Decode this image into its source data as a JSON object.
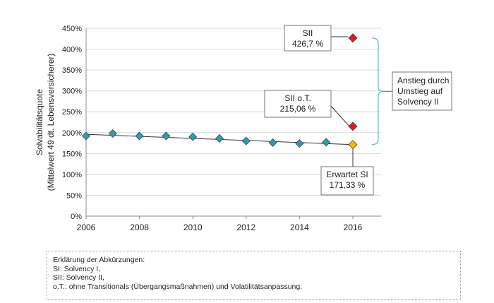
{
  "chart_data": {
    "type": "line",
    "title": "",
    "ylabel": [
      "Solvabilitätsquote",
      "(Mittelwert 49 dt. Lebensversicherer)"
    ],
    "xlabel": "",
    "xlim": [
      2006,
      2017
    ],
    "ylim": [
      0,
      450
    ],
    "x_ticks": [
      2006,
      2008,
      2010,
      2012,
      2014,
      2016
    ],
    "y_ticks": [
      0,
      50,
      100,
      150,
      200,
      250,
      300,
      350,
      400,
      450
    ],
    "y_tick_suffix": "%",
    "grid": "horizontal",
    "series": [
      {
        "color": "#2e9bb5",
        "marker": "diamond",
        "x": [
          2006,
          2007,
          2008,
          2009,
          2010,
          2011,
          2012,
          2013,
          2014,
          2015
        ],
        "y": [
          192,
          198,
          192,
          192,
          190,
          186,
          180,
          176,
          174,
          177
        ]
      }
    ],
    "trend_line": {
      "color": "#333333",
      "x": [
        2006,
        2016
      ],
      "y": [
        196,
        171.33
      ]
    },
    "annotated_points": [
      {
        "x": 2016,
        "y": 426.7,
        "label_lines": [
          "SII",
          "426,7 %"
        ],
        "color": "#e31a1c"
      },
      {
        "x": 2016,
        "y": 215.06,
        "label_lines": [
          "SII o.T.",
          "215,06 %"
        ],
        "color": "#e31a1c"
      },
      {
        "x": 2016,
        "y": 171.33,
        "label_lines": [
          "Erwartet SI",
          "171,33 %"
        ],
        "color": "#f5b800"
      }
    ],
    "bracket": {
      "from_y": 171.33,
      "to_y": 426.7,
      "color": "#5ab8d0",
      "label_lines": [
        "Anstieg durch",
        "Umstieg auf",
        "Solvency II"
      ]
    }
  },
  "note": {
    "lines": [
      "Erklärung der Abkürzungen:",
      "SI: Solvency I,",
      "SII: Solvency II,",
      "o.T.: ohne Transitionals (Übergangsmaßnahmen) und Volatilitätsanpassung."
    ]
  }
}
